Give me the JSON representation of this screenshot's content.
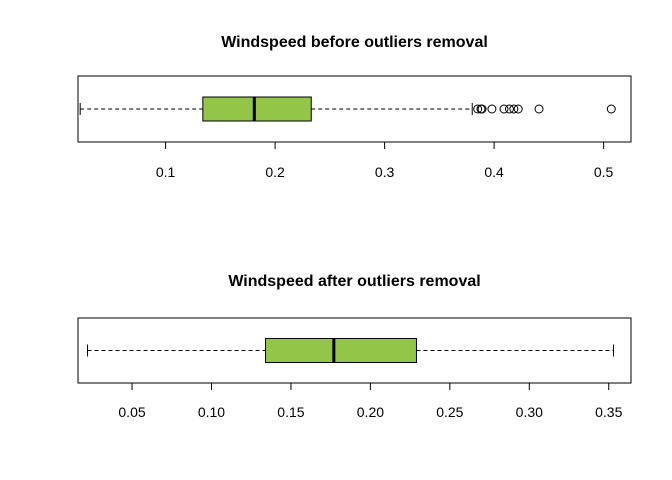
{
  "chart_data": [
    {
      "type": "boxplot",
      "orientation": "horizontal",
      "title": "Windspeed before outliers removal",
      "xlabel": "",
      "ylabel": "",
      "xlim": [
        0.02,
        0.525
      ],
      "ticks": [
        0.1,
        0.2,
        0.3,
        0.4,
        0.5
      ],
      "tick_labels": [
        "0.1",
        "0.2",
        "0.3",
        "0.4",
        "0.5"
      ],
      "box": {
        "whisker_low": 0.022,
        "q1": 0.134,
        "median": 0.181,
        "q3": 0.233,
        "whisker_high": 0.38
      },
      "outliers": [
        0.385,
        0.388,
        0.389,
        0.398,
        0.409,
        0.414,
        0.418,
        0.422,
        0.441,
        0.507
      ],
      "box_color": "#93c548",
      "grid": false
    },
    {
      "type": "boxplot",
      "orientation": "horizontal",
      "title": "Windspeed after outliers removal",
      "xlabel": "",
      "ylabel": "",
      "xlim": [
        0.016,
        0.364
      ],
      "ticks": [
        0.05,
        0.1,
        0.15,
        0.2,
        0.25,
        0.3,
        0.35
      ],
      "tick_labels": [
        "0.05",
        "0.10",
        "0.15",
        "0.20",
        "0.25",
        "0.30",
        "0.35"
      ],
      "box": {
        "whisker_low": 0.022,
        "q1": 0.134,
        "median": 0.177,
        "q3": 0.229,
        "whisker_high": 0.353
      },
      "outliers": [],
      "box_color": "#93c548",
      "grid": false
    }
  ]
}
